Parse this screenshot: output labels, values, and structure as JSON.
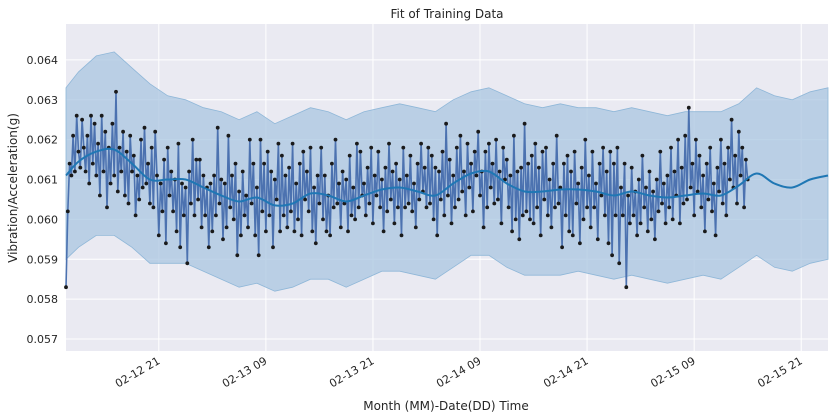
{
  "chart_data": {
    "type": "line",
    "title": "Fit of Training Data",
    "xlabel": "Month (MM)-Date(DD) Time",
    "ylabel": "Vibration/Acceleration(g)",
    "x_ticks": [
      {
        "label": "02-12 21",
        "hours": 21
      },
      {
        "label": "02-13 09",
        "hours": 33
      },
      {
        "label": "02-13 21",
        "hours": 45
      },
      {
        "label": "02-14 09",
        "hours": 57
      },
      {
        "label": "02-14 21",
        "hours": 69
      },
      {
        "label": "02-15 09",
        "hours": 81
      },
      {
        "label": "02-15 21",
        "hours": 93
      }
    ],
    "xlim_hours": [
      10.6,
      96.0
    ],
    "xlim_label": [
      "02-12 10:36",
      "02-16 00:00"
    ],
    "y_ticks": [
      0.057,
      0.058,
      0.059,
      0.06,
      0.061,
      0.062,
      0.063,
      0.064
    ],
    "ylim": [
      0.0567,
      0.0649
    ],
    "grid": true,
    "colors": {
      "background": "#eaeaf2",
      "grid": "#ffffff",
      "observed_line": "#4c72b0",
      "observed_points": "#1a1a1a",
      "trend_line": "#1f77b4",
      "uncertainty_band": "#a9c6e0",
      "uncertainty_edge": "#8fb7d8"
    },
    "trend": {
      "name": "",
      "hours": [
        10.6,
        12,
        14,
        16,
        18,
        20,
        22,
        24,
        26,
        28,
        30,
        32,
        34,
        36,
        38,
        40,
        42,
        44,
        46,
        48,
        50,
        52,
        54,
        56,
        58,
        60,
        62,
        64,
        66,
        68,
        70,
        72,
        74,
        76,
        78,
        80,
        82,
        84,
        86,
        88,
        90,
        92,
        94,
        96
      ],
      "values": [
        0.0611,
        0.06145,
        0.0617,
        0.06175,
        0.0614,
        0.061,
        0.061,
        0.061,
        0.0608,
        0.0606,
        0.06045,
        0.06055,
        0.06035,
        0.0604,
        0.06065,
        0.0606,
        0.06045,
        0.0606,
        0.06075,
        0.0608,
        0.0607,
        0.0606,
        0.0609,
        0.06115,
        0.0612,
        0.0609,
        0.0607,
        0.0607,
        0.06075,
        0.06075,
        0.0607,
        0.0606,
        0.0607,
        0.0606,
        0.06055,
        0.0606,
        0.06065,
        0.0606,
        0.06085,
        0.06115,
        0.0609,
        0.0608,
        0.061,
        0.0611
      ]
    },
    "band": {
      "hours": [
        10.6,
        12,
        14,
        16,
        18,
        20,
        22,
        24,
        26,
        28,
        30,
        32,
        34,
        36,
        38,
        40,
        42,
        44,
        46,
        48,
        50,
        52,
        54,
        56,
        58,
        60,
        62,
        64,
        66,
        68,
        70,
        72,
        74,
        76,
        78,
        80,
        82,
        84,
        86,
        88,
        90,
        92,
        94,
        96
      ],
      "upper": [
        0.0633,
        0.0637,
        0.0641,
        0.0642,
        0.0638,
        0.0634,
        0.0631,
        0.063,
        0.0628,
        0.0627,
        0.0625,
        0.0627,
        0.0624,
        0.0626,
        0.0628,
        0.0627,
        0.0625,
        0.0627,
        0.0628,
        0.0629,
        0.0628,
        0.0627,
        0.063,
        0.0632,
        0.0633,
        0.0631,
        0.0629,
        0.0628,
        0.0629,
        0.0628,
        0.0628,
        0.0627,
        0.0628,
        0.0627,
        0.0626,
        0.0627,
        0.0627,
        0.0627,
        0.0629,
        0.0633,
        0.0631,
        0.063,
        0.0632,
        0.0633
      ],
      "lower": [
        0.059,
        0.0593,
        0.0596,
        0.0596,
        0.0593,
        0.0589,
        0.0589,
        0.0589,
        0.0587,
        0.0585,
        0.0583,
        0.0584,
        0.0582,
        0.0583,
        0.0585,
        0.0585,
        0.0583,
        0.0585,
        0.0587,
        0.0587,
        0.0586,
        0.0585,
        0.0588,
        0.0591,
        0.0591,
        0.0588,
        0.0586,
        0.0586,
        0.0586,
        0.0587,
        0.0586,
        0.0585,
        0.0586,
        0.0585,
        0.0584,
        0.0585,
        0.0586,
        0.0585,
        0.0588,
        0.0591,
        0.0588,
        0.0587,
        0.0589,
        0.059
      ]
    },
    "observed": {
      "name": "",
      "start_hours": 10.6,
      "step_hours": 0.2,
      "values": [
        0.0583,
        0.0602,
        0.0614,
        0.0611,
        0.0621,
        0.0612,
        0.0626,
        0.0617,
        0.0613,
        0.0625,
        0.0618,
        0.0612,
        0.0621,
        0.0609,
        0.0626,
        0.0614,
        0.0624,
        0.0611,
        0.0619,
        0.0606,
        0.0626,
        0.0612,
        0.0622,
        0.0603,
        0.0618,
        0.0609,
        0.0624,
        0.0611,
        0.0632,
        0.0607,
        0.0618,
        0.0612,
        0.0622,
        0.0606,
        0.0617,
        0.0604,
        0.0621,
        0.0612,
        0.0616,
        0.0601,
        0.0611,
        0.0605,
        0.062,
        0.0608,
        0.0623,
        0.0609,
        0.0614,
        0.0604,
        0.0618,
        0.0603,
        0.0622,
        0.0611,
        0.0596,
        0.0609,
        0.0602,
        0.0615,
        0.0594,
        0.0618,
        0.0606,
        0.0612,
        0.0602,
        0.061,
        0.0597,
        0.0619,
        0.0593,
        0.0609,
        0.0601,
        0.0608,
        0.0589,
        0.0612,
        0.0604,
        0.062,
        0.0601,
        0.0615,
        0.0605,
        0.0615,
        0.0598,
        0.0611,
        0.0601,
        0.0608,
        0.0593,
        0.0609,
        0.0597,
        0.0611,
        0.0601,
        0.0623,
        0.0604,
        0.061,
        0.0595,
        0.0609,
        0.0598,
        0.0621,
        0.0603,
        0.0611,
        0.06,
        0.0614,
        0.0591,
        0.0607,
        0.0596,
        0.0612,
        0.0601,
        0.0606,
        0.0598,
        0.062,
        0.0604,
        0.0614,
        0.0596,
        0.0608,
        0.0591,
        0.062,
        0.0602,
        0.0614,
        0.0597,
        0.0617,
        0.0601,
        0.0612,
        0.0593,
        0.061,
        0.0605,
        0.0619,
        0.0597,
        0.0616,
        0.0601,
        0.0611,
        0.0598,
        0.0613,
        0.0602,
        0.0619,
        0.0597,
        0.0609,
        0.06,
        0.0614,
        0.0596,
        0.0617,
        0.0605,
        0.0612,
        0.0602,
        0.0618,
        0.0597,
        0.0608,
        0.0594,
        0.0611,
        0.0604,
        0.0618,
        0.06,
        0.0611,
        0.0597,
        0.0606,
        0.0596,
        0.0614,
        0.0603,
        0.062,
        0.0604,
        0.0609,
        0.0598,
        0.0612,
        0.0604,
        0.061,
        0.0597,
        0.0616,
        0.0601,
        0.0608,
        0.06,
        0.0619,
        0.0603,
        0.0617,
        0.0606,
        0.0609,
        0.0601,
        0.0613,
        0.0604,
        0.0618,
        0.0599,
        0.0611,
        0.0606,
        0.0617,
        0.0603,
        0.061,
        0.0597,
        0.0613,
        0.0602,
        0.0619,
        0.0605,
        0.0612,
        0.0599,
        0.0614,
        0.0603,
        0.061,
        0.0596,
        0.0618,
        0.0603,
        0.0611,
        0.0604,
        0.0616,
        0.0602,
        0.0609,
        0.0598,
        0.0614,
        0.0605,
        0.0619,
        0.0607,
        0.0613,
        0.0603,
        0.0618,
        0.0604,
        0.0616,
        0.06,
        0.0613,
        0.0596,
        0.0612,
        0.0605,
        0.0617,
        0.0601,
        0.0624,
        0.0606,
        0.0615,
        0.0599,
        0.0611,
        0.0603,
        0.0618,
        0.0605,
        0.0621,
        0.0607,
        0.0612,
        0.0601,
        0.0619,
        0.0608,
        0.0614,
        0.0602,
        0.0617,
        0.0611,
        0.0622,
        0.0606,
        0.0612,
        0.0598,
        0.0617,
        0.0603,
        0.0619,
        0.0608,
        0.0614,
        0.0604,
        0.062,
        0.0605,
        0.0612,
        0.0599,
        0.0618,
        0.061,
        0.0615,
        0.0603,
        0.0611,
        0.0597,
        0.0621,
        0.06,
        0.0612,
        0.0595,
        0.0613,
        0.0601,
        0.0624,
        0.0602,
        0.0614,
        0.06,
        0.0616,
        0.0599,
        0.0619,
        0.0603,
        0.0613,
        0.0596,
        0.0617,
        0.0605,
        0.0618,
        0.0601,
        0.061,
        0.0598,
        0.0614,
        0.0603,
        0.0621,
        0.0604,
        0.0608,
        0.0593,
        0.0614,
        0.0601,
        0.0616,
        0.0597,
        0.0612,
        0.0596,
        0.0617,
        0.0604,
        0.0609,
        0.0594,
        0.0613,
        0.06,
        0.062,
        0.0603,
        0.0611,
        0.0598,
        0.0617,
        0.0603,
        0.0609,
        0.0595,
        0.0614,
        0.0606,
        0.0618,
        0.0601,
        0.0612,
        0.0594,
        0.0617,
        0.0591,
        0.0614,
        0.0601,
        0.0618,
        0.0589,
        0.0608,
        0.0601,
        0.0614,
        0.0583,
        0.0606,
        0.0599,
        0.0613,
        0.0601,
        0.0607,
        0.0596,
        0.061,
        0.0599,
        0.0616,
        0.0603,
        0.0608,
        0.0597,
        0.0612,
        0.06,
        0.0607,
        0.0595,
        0.061,
        0.0602,
        0.0617,
        0.0604,
        0.0609,
        0.0599,
        0.0611,
        0.0603,
        0.0618,
        0.06,
        0.0612,
        0.0606,
        0.062,
        0.0599,
        0.0613,
        0.0604,
        0.0621,
        0.0605,
        0.0628,
        0.0608,
        0.0614,
        0.0601,
        0.062,
        0.0607,
        0.0616,
        0.0603,
        0.0611,
        0.0597,
        0.0614,
        0.0605,
        0.0618,
        0.0602,
        0.0609,
        0.0596,
        0.0613,
        0.0607,
        0.062,
        0.0604,
        0.0614,
        0.0601,
        0.0618,
        0.061,
        0.0625,
        0.0608,
        0.0616,
        0.0604,
        0.0622,
        0.0611,
        0.0618,
        0.0603,
        0.0615,
        0.061
      ]
    }
  }
}
